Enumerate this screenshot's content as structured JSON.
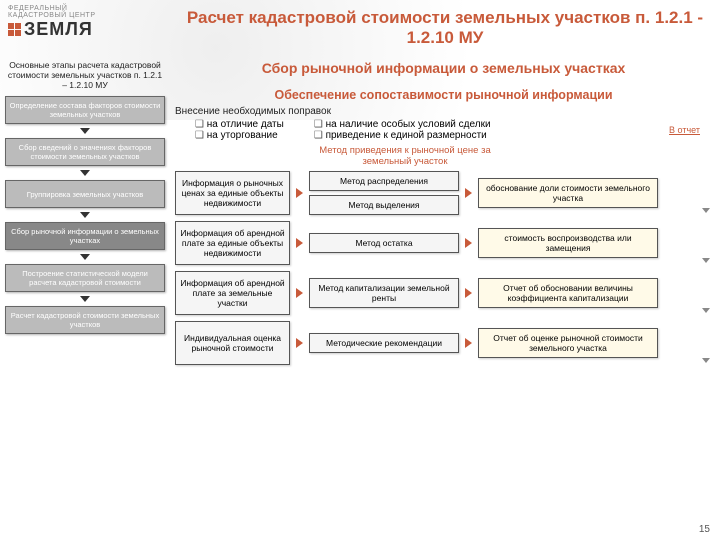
{
  "logo": {
    "top": "ФЕДЕРАЛЬНЫЙ",
    "mid": "КАДАСТРОВЫЙ ЦЕНТР",
    "word": "ЗЕМЛЯ"
  },
  "title": "Расчет кадастровой стоимости земельных участков п. 1.2.1 - 1.2.10 МУ",
  "sidebar": {
    "title": "Основные этапы расчета кадастровой стоимости земельных участков п. 1.2.1 – 1.2.10 МУ",
    "stages": [
      "Определение состава факторов стоимости земельных участков",
      "Сбор сведений о значениях факторов стоимости земельных участков",
      "Группировка земельных участков",
      "Сбор рыночной информации о земельных участках",
      "Построение статистической модели расчета кадастровой стоимости",
      "Расчет кадастровой стоимости земельных участков"
    ]
  },
  "main": {
    "sub1": "Сбор рыночной информации о земельных участках",
    "sub2": "Обеспечение сопоставимости рыночной информации",
    "intro": "Внесение необходимых поправок",
    "bl": [
      "на отличие даты",
      "на уторгование"
    ],
    "br": [
      "на наличие особых условий сделки",
      "приведение к единой размерности"
    ],
    "method_label": "Метод приведения к рыночной цене за земельный участок",
    "report_link": "В отчет"
  },
  "rows": [
    {
      "c1": "Информация о рыночных ценах за единые объекты недвижимости",
      "c2": [
        "Метод распределения",
        "Метод выделения"
      ],
      "c3": "обоснование доли стоимости земельного участка"
    },
    {
      "c1": "Информация об арендной плате за единые объекты недвижимости",
      "c2": [
        "Метод остатка"
      ],
      "c3": "стоимость воспроизводства или замещения"
    },
    {
      "c1": "Информация об арендной плате за земельные участки",
      "c2": [
        "Метод капитализации земельной ренты"
      ],
      "c3": "Отчет об обосновании величины коэффициента капитализации"
    },
    {
      "c1": "Индивидуальная оценка рыночной стоимости",
      "c2": [
        "Методические рекомендации"
      ],
      "c3": "Отчет об оценке рыночной стоимости земельного участка"
    }
  ],
  "pagenum": "15",
  "colors": {
    "accent": "#c85a3a",
    "box_bg": "#f5f5f5",
    "note_bg": "#fffae8"
  }
}
